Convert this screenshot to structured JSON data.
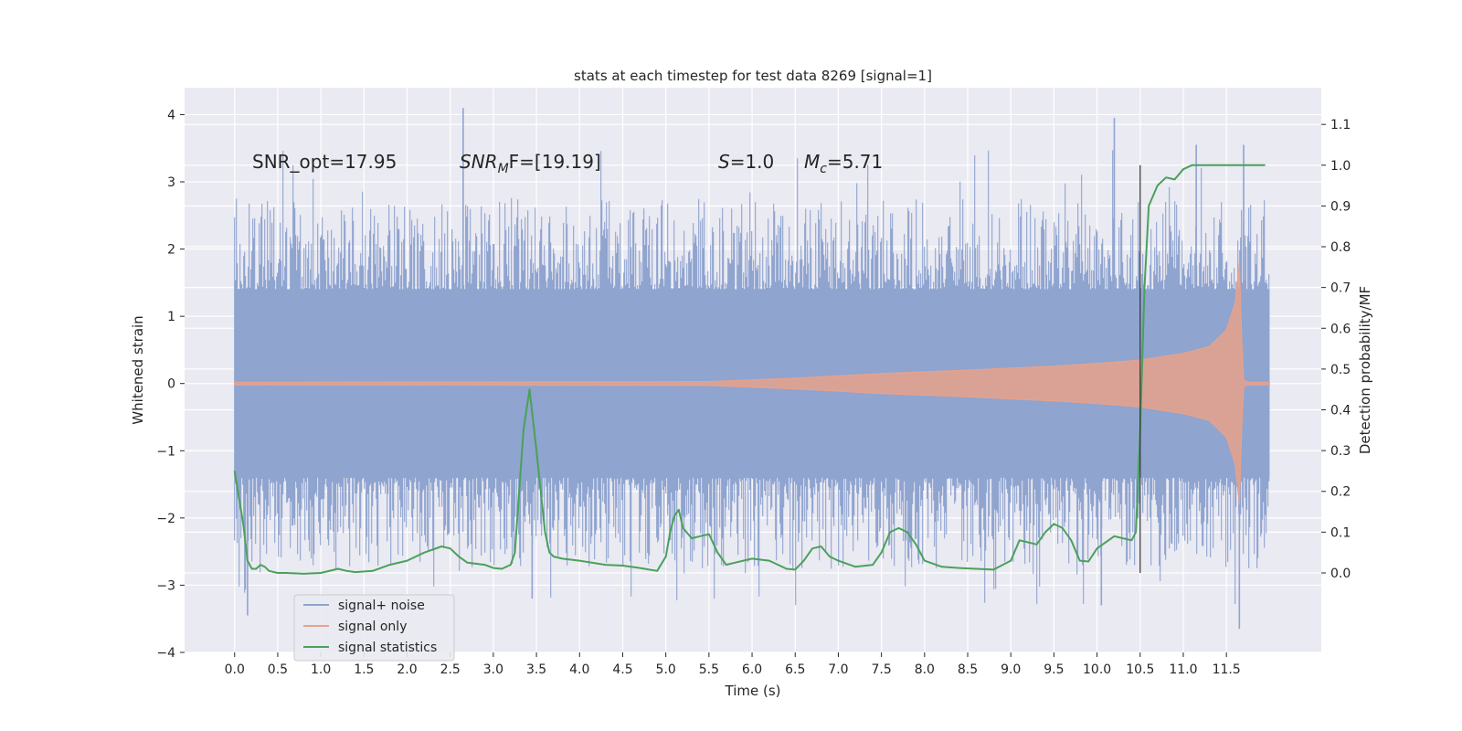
{
  "chart_data": {
    "type": "line",
    "title": "stats at each timestep for test data 8269 [signal=1]",
    "xlabel": "Time (s)",
    "ylabel_left": "Whitened strain",
    "ylabel_right": "Detection probability/MF",
    "xlim": [
      -0.58,
      12.6
    ],
    "ylim_left": [
      -4,
      4.4
    ],
    "ylim_right": [
      -0.195,
      1.19
    ],
    "x_ticks": [
      "0.0",
      "0.5",
      "1.0",
      "1.5",
      "2.0",
      "2.5",
      "3.0",
      "3.5",
      "4.0",
      "4.5",
      "5.0",
      "5.5",
      "6.0",
      "6.5",
      "7.0",
      "7.5",
      "8.0",
      "8.5",
      "9.0",
      "9.5",
      "10.0",
      "10.5",
      "11.0",
      "11.5"
    ],
    "y_ticks_left": [
      "4",
      "3",
      "2",
      "1",
      "0",
      "−1",
      "−2",
      "−3",
      "−4"
    ],
    "y_ticks_right": [
      "1.1",
      "1.0",
      "0.9",
      "0.8",
      "0.7",
      "0.6",
      "0.5",
      "0.4",
      "0.3",
      "0.2",
      "0.1",
      "0.0"
    ],
    "grid": true,
    "legend_position": "lower-left",
    "annotations": [
      {
        "id": "snr-opt",
        "prefix": "SNR_opt=17.95",
        "italic": "",
        "sub": "",
        "rest": ""
      },
      {
        "id": "snr-mf",
        "prefix": "",
        "italic": "SNR",
        "sub": "M",
        "rest": "F=[19.19]"
      },
      {
        "id": "s-value",
        "prefix": "",
        "italic": "S",
        "sub": "",
        "rest": "=1.0"
      },
      {
        "id": "chirp-mass",
        "prefix": "",
        "italic": "M",
        "sub": "c",
        "rest": "=5.71"
      }
    ],
    "vertical_marker_time": 10.5,
    "series": [
      {
        "name": "signal+ noise",
        "color": "#8fa4cf",
        "axis": "left",
        "description": "dense noise band",
        "x_range": [
          0.0,
          12.0
        ],
        "core_band": [
          -1.4,
          1.4
        ],
        "extremes": [
          -3.65,
          4.1
        ]
      },
      {
        "name": "signal only",
        "color": "#e8a28b",
        "axis": "left",
        "envelope_x": [
          0.0,
          5.5,
          6.5,
          7.5,
          8.5,
          9.5,
          10.0,
          10.5,
          11.0,
          11.3,
          11.5,
          11.6,
          11.65,
          11.68,
          11.7,
          11.75,
          12.0
        ],
        "envelope_y": [
          0.02,
          0.03,
          0.08,
          0.15,
          0.2,
          0.26,
          0.3,
          0.35,
          0.45,
          0.55,
          0.8,
          1.2,
          1.8,
          0.6,
          0.05,
          0.02,
          0.02
        ]
      },
      {
        "name": "signal statistics",
        "color": "#4aa15a",
        "axis": "right",
        "x": [
          0.0,
          0.1,
          0.15,
          0.2,
          0.25,
          0.3,
          0.35,
          0.4,
          0.5,
          0.6,
          0.8,
          1.0,
          1.2,
          1.3,
          1.4,
          1.6,
          1.8,
          2.0,
          2.2,
          2.4,
          2.5,
          2.6,
          2.7,
          2.9,
          3.0,
          3.1,
          3.2,
          3.25,
          3.3,
          3.35,
          3.42,
          3.5,
          3.6,
          3.65,
          3.7,
          3.8,
          4.0,
          4.3,
          4.5,
          4.7,
          4.9,
          5.0,
          5.05,
          5.1,
          5.15,
          5.2,
          5.3,
          5.4,
          5.5,
          5.6,
          5.7,
          5.8,
          6.0,
          6.2,
          6.4,
          6.5,
          6.6,
          6.7,
          6.8,
          6.9,
          7.0,
          7.2,
          7.4,
          7.5,
          7.6,
          7.7,
          7.8,
          7.9,
          8.0,
          8.2,
          8.4,
          8.6,
          8.8,
          9.0,
          9.1,
          9.2,
          9.3,
          9.4,
          9.5,
          9.6,
          9.7,
          9.8,
          9.9,
          10.0,
          10.2,
          10.3,
          10.4,
          10.45,
          10.5,
          10.55,
          10.6,
          10.7,
          10.8,
          10.9,
          11.0,
          11.1,
          11.5,
          11.95
        ],
        "y": [
          0.25,
          0.12,
          0.03,
          0.01,
          0.01,
          0.02,
          0.015,
          0.005,
          0.0,
          0.0,
          -0.002,
          0.0,
          0.01,
          0.005,
          0.002,
          0.005,
          0.02,
          0.03,
          0.05,
          0.065,
          0.06,
          0.04,
          0.025,
          0.02,
          0.012,
          0.01,
          0.02,
          0.05,
          0.2,
          0.35,
          0.45,
          0.3,
          0.1,
          0.05,
          0.04,
          0.035,
          0.03,
          0.02,
          0.018,
          0.012,
          0.005,
          0.04,
          0.1,
          0.14,
          0.155,
          0.11,
          0.085,
          0.09,
          0.095,
          0.05,
          0.02,
          0.025,
          0.035,
          0.03,
          0.01,
          0.008,
          0.03,
          0.06,
          0.065,
          0.04,
          0.03,
          0.015,
          0.02,
          0.05,
          0.1,
          0.11,
          0.1,
          0.07,
          0.03,
          0.015,
          0.012,
          0.01,
          0.008,
          0.03,
          0.08,
          0.075,
          0.07,
          0.1,
          0.12,
          0.11,
          0.08,
          0.03,
          0.028,
          0.06,
          0.09,
          0.085,
          0.08,
          0.1,
          0.35,
          0.7,
          0.9,
          0.95,
          0.97,
          0.965,
          0.99,
          1.0,
          1.0,
          1.0
        ]
      }
    ]
  }
}
